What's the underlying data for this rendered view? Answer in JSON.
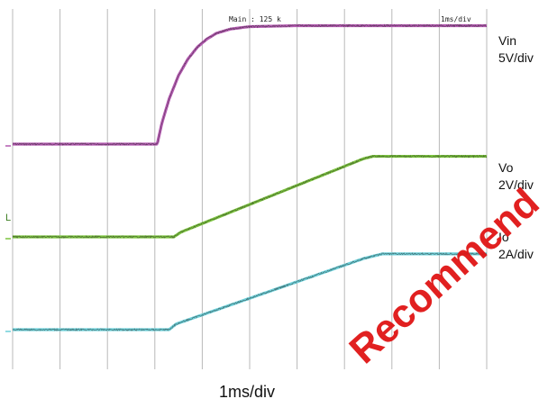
{
  "colors": {
    "vin": "#b35ab0",
    "vo": "#7cc43f",
    "io": "#6ccfd8",
    "grid": "#b8b8b8",
    "noise": "#1f1f1f",
    "watermark": "#e01515"
  },
  "header": {
    "main_label": "Main : 125 k",
    "timebase_label": "1ms/div"
  },
  "footer": {
    "xaxis_label": "1ms/div"
  },
  "labels": {
    "vin_name": "Vin",
    "vin_scale": "5V/div",
    "vo_name": "Vo",
    "vo_scale": "2V/div",
    "io_name": "Io",
    "io_scale": "2A/div",
    "ground_marker": "L"
  },
  "watermark": {
    "text": "Recommend"
  },
  "chart_data": {
    "type": "line",
    "title": "",
    "xlabel": "1ms/div",
    "ylabel": "",
    "x_divisions": 10,
    "x_unit": "ms",
    "xlim": [
      0,
      10
    ],
    "grid": true,
    "series": [
      {
        "name": "Vin",
        "scale": "5V/div",
        "color_key": "vin",
        "level_low_div": 0,
        "level_high_div": 2.5,
        "points": [
          [
            0,
            0
          ],
          [
            3.05,
            0
          ],
          [
            3.15,
            0.45
          ],
          [
            3.3,
            0.95
          ],
          [
            3.5,
            1.45
          ],
          [
            3.7,
            1.8
          ],
          [
            3.9,
            2.05
          ],
          [
            4.1,
            2.22
          ],
          [
            4.3,
            2.34
          ],
          [
            4.6,
            2.43
          ],
          [
            5.0,
            2.48
          ],
          [
            6.0,
            2.5
          ],
          [
            10,
            2.5
          ]
        ]
      },
      {
        "name": "Vo",
        "scale": "2V/div",
        "color_key": "vo",
        "level_low_div": 0,
        "level_high_div": 1.7,
        "points": [
          [
            0,
            0
          ],
          [
            3.4,
            0
          ],
          [
            3.55,
            0.1
          ],
          [
            7.4,
            1.65
          ],
          [
            7.6,
            1.7
          ],
          [
            10,
            1.7
          ]
        ]
      },
      {
        "name": "Io",
        "scale": "2A/div",
        "color_key": "io",
        "level_low_div": 0,
        "level_high_div": 1.6,
        "points": [
          [
            0,
            0
          ],
          [
            3.3,
            0
          ],
          [
            3.45,
            0.12
          ],
          [
            7.4,
            1.5
          ],
          [
            7.8,
            1.6
          ],
          [
            10,
            1.6
          ]
        ]
      }
    ]
  }
}
